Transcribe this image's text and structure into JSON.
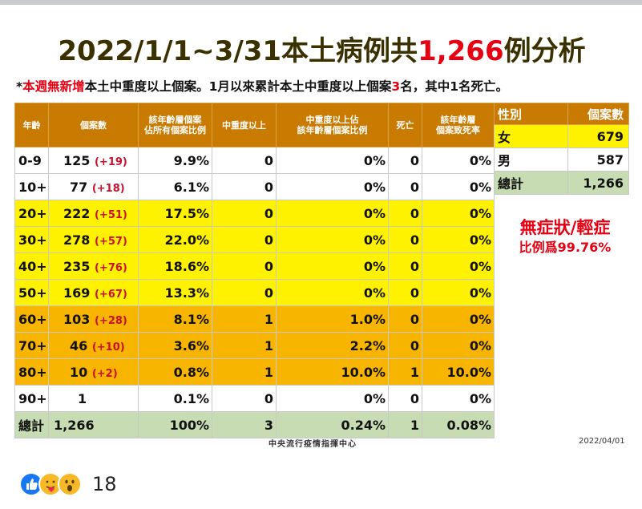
{
  "title": {
    "prefix": "2022/1/1~3/31本土病例共",
    "highlight": "1,266",
    "suffix": "例分析"
  },
  "subtitle": {
    "star": "*",
    "highlight1": "本週無新增",
    "text1": "本土中重度以上個案。1月以來累計本土中重度以上個案",
    "highlight2": "3",
    "text2": "名，其中1名死亡。"
  },
  "table": {
    "headers": [
      "年齡",
      "個案數",
      "該年齡層個案\n佔所有個案比例",
      "中重度以上",
      "中重度以上佔\n該年齡層個案比例",
      "死亡",
      "該年齡層\n個案致死率"
    ],
    "rows": [
      {
        "age": "0-9",
        "cases": "125",
        "inc": "(+19)",
        "pct": "9.9%",
        "severe": "0",
        "severe_pct": "0%",
        "deaths": "0",
        "fatality": "0%",
        "color": "white"
      },
      {
        "age": "10+",
        "cases": "77",
        "inc": "(+18)",
        "pct": "6.1%",
        "severe": "0",
        "severe_pct": "0%",
        "deaths": "0",
        "fatality": "0%",
        "color": "white"
      },
      {
        "age": "20+",
        "cases": "222",
        "inc": "(+51)",
        "pct": "17.5%",
        "severe": "0",
        "severe_pct": "0%",
        "deaths": "0",
        "fatality": "0%",
        "color": "yellow"
      },
      {
        "age": "30+",
        "cases": "278",
        "inc": "(+57)",
        "pct": "22.0%",
        "severe": "0",
        "severe_pct": "0%",
        "deaths": "0",
        "fatality": "0%",
        "color": "yellow"
      },
      {
        "age": "40+",
        "cases": "235",
        "inc": "(+76)",
        "pct": "18.6%",
        "severe": "0",
        "severe_pct": "0%",
        "deaths": "0",
        "fatality": "0%",
        "color": "yellow"
      },
      {
        "age": "50+",
        "cases": "169",
        "inc": "(+67)",
        "pct": "13.3%",
        "severe": "0",
        "severe_pct": "0%",
        "deaths": "0",
        "fatality": "0%",
        "color": "yellow"
      },
      {
        "age": "60+",
        "cases": "103",
        "inc": "(+28)",
        "pct": "8.1%",
        "severe": "1",
        "severe_pct": "1.0%",
        "deaths": "0",
        "fatality": "0%",
        "color": "orange"
      },
      {
        "age": "70+",
        "cases": "46",
        "inc": "(+10)",
        "pct": "3.6%",
        "severe": "1",
        "severe_pct": "2.2%",
        "deaths": "0",
        "fatality": "0%",
        "color": "orange"
      },
      {
        "age": "80+",
        "cases": "10",
        "inc": "(+2)",
        "pct": "0.8%",
        "severe": "1",
        "severe_pct": "10.0%",
        "deaths": "1",
        "fatality": "10.0%",
        "color": "orange"
      },
      {
        "age": "90+",
        "cases": "1",
        "inc": "",
        "pct": "0.1%",
        "severe": "0",
        "severe_pct": "0%",
        "deaths": "0",
        "fatality": "0%",
        "color": "white"
      },
      {
        "age": "總計",
        "cases": "1,266",
        "inc": "",
        "pct": "100%",
        "severe": "3",
        "severe_pct": "0.24%",
        "deaths": "1",
        "fatality": "0.08%",
        "color": "total"
      }
    ]
  },
  "gender_table": {
    "headers": [
      "性別",
      "個案數"
    ],
    "rows": [
      {
        "label": "女",
        "value": "679",
        "color": "yellow"
      },
      {
        "label": "男",
        "value": "587",
        "color": "white"
      },
      {
        "label": "總計",
        "value": "1,266",
        "color": "total"
      }
    ]
  },
  "asymptomatic": {
    "line1": "無症狀/輕症",
    "line2": "比例爲99.76%"
  },
  "source": "中央流行疫情指揮中心",
  "date": "2022/04/01",
  "reactions": {
    "icons": [
      "like-icon",
      "care-icon",
      "wow-icon"
    ],
    "count": "18"
  },
  "colors": {
    "header": "#c97a00",
    "yellow": "#fff200",
    "orange": "#f7b500",
    "total": "#c8dcb4",
    "accent_red": "#e60012"
  }
}
